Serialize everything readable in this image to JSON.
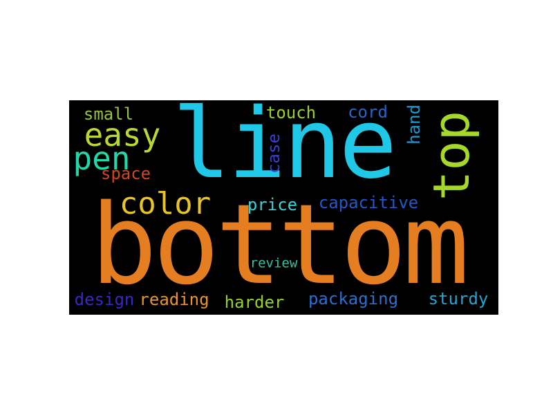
{
  "word_cloud": {
    "background": "#000000",
    "words": [
      {
        "id": "line",
        "text": "line",
        "color": "#1ec8e6",
        "orientation": "horizontal"
      },
      {
        "id": "bottom",
        "text": "bottom",
        "color": "#e57e21",
        "orientation": "horizontal"
      },
      {
        "id": "top",
        "text": "top",
        "color": "#a6d82a",
        "orientation": "vertical"
      },
      {
        "id": "easy",
        "text": "easy",
        "color": "#b9d930",
        "orientation": "horizontal"
      },
      {
        "id": "pen",
        "text": "pen",
        "color": "#24d6a8",
        "orientation": "horizontal"
      },
      {
        "id": "color",
        "text": "color",
        "color": "#e8c42a",
        "orientation": "horizontal"
      },
      {
        "id": "small",
        "text": "small",
        "color": "#97c43b",
        "orientation": "horizontal"
      },
      {
        "id": "touch",
        "text": "touch",
        "color": "#9bd02b",
        "orientation": "horizontal"
      },
      {
        "id": "cord",
        "text": "cord",
        "color": "#2a64c9",
        "orientation": "horizontal"
      },
      {
        "id": "hand",
        "text": "hand",
        "color": "#1e9ad2",
        "orientation": "vertical"
      },
      {
        "id": "case",
        "text": "case",
        "color": "#3b3fcf",
        "orientation": "vertical"
      },
      {
        "id": "space",
        "text": "space",
        "color": "#d2451f",
        "orientation": "horizontal"
      },
      {
        "id": "price",
        "text": "price",
        "color": "#3fd0d8",
        "orientation": "horizontal"
      },
      {
        "id": "capacitive",
        "text": "capacitive",
        "color": "#2756c9",
        "orientation": "horizontal"
      },
      {
        "id": "review",
        "text": "review",
        "color": "#2dc6a0",
        "orientation": "horizontal"
      },
      {
        "id": "design",
        "text": "design",
        "color": "#3a28c6",
        "orientation": "horizontal"
      },
      {
        "id": "reading",
        "text": "reading",
        "color": "#e8962a",
        "orientation": "horizontal"
      },
      {
        "id": "harder",
        "text": "harder",
        "color": "#96d12a",
        "orientation": "horizontal"
      },
      {
        "id": "packaging",
        "text": "packaging",
        "color": "#2b6fd1",
        "orientation": "horizontal"
      },
      {
        "id": "sturdy",
        "text": "sturdy",
        "color": "#24a6d1",
        "orientation": "horizontal"
      }
    ]
  }
}
